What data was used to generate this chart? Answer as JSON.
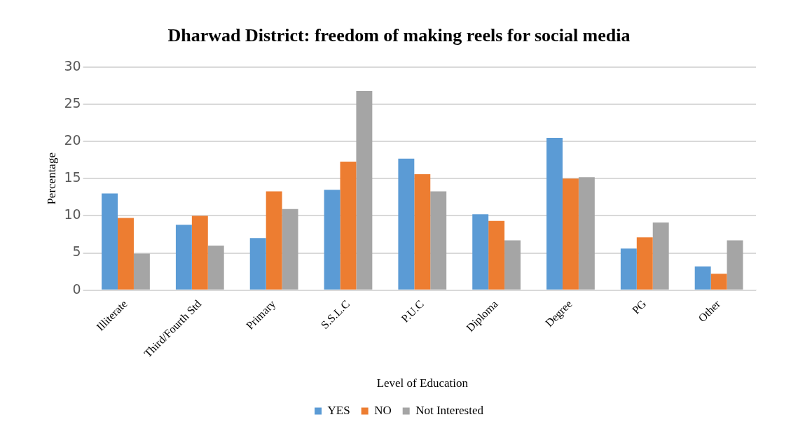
{
  "chart_data": {
    "type": "bar",
    "title": "Dharwad District: freedom of making reels for social media",
    "xlabel": "Level of Education",
    "ylabel": "Percentage",
    "categories": [
      "Illiterate",
      "Third/Fourth Std",
      "Primary",
      "S.S.L.C",
      "P.U.C",
      "Diploma",
      "Degree",
      "PG",
      "Other"
    ],
    "series": [
      {
        "name": "YES",
        "color": "#5b9bd5",
        "values": [
          13.0,
          8.8,
          7.0,
          13.5,
          17.7,
          10.2,
          20.5,
          5.6,
          3.2
        ]
      },
      {
        "name": "NO",
        "color": "#ed7d31",
        "values": [
          9.7,
          10.0,
          13.3,
          17.3,
          15.6,
          9.3,
          15.0,
          7.1,
          2.2
        ]
      },
      {
        "name": "Not Interested",
        "color": "#a5a5a5",
        "values": [
          4.9,
          6.0,
          10.9,
          26.8,
          13.3,
          6.7,
          15.2,
          9.1,
          6.7
        ]
      }
    ],
    "ylim": [
      0,
      30
    ],
    "yticks": [
      0,
      5,
      10,
      15,
      20,
      25,
      30
    ],
    "grid": "y",
    "legend": "bottom"
  }
}
